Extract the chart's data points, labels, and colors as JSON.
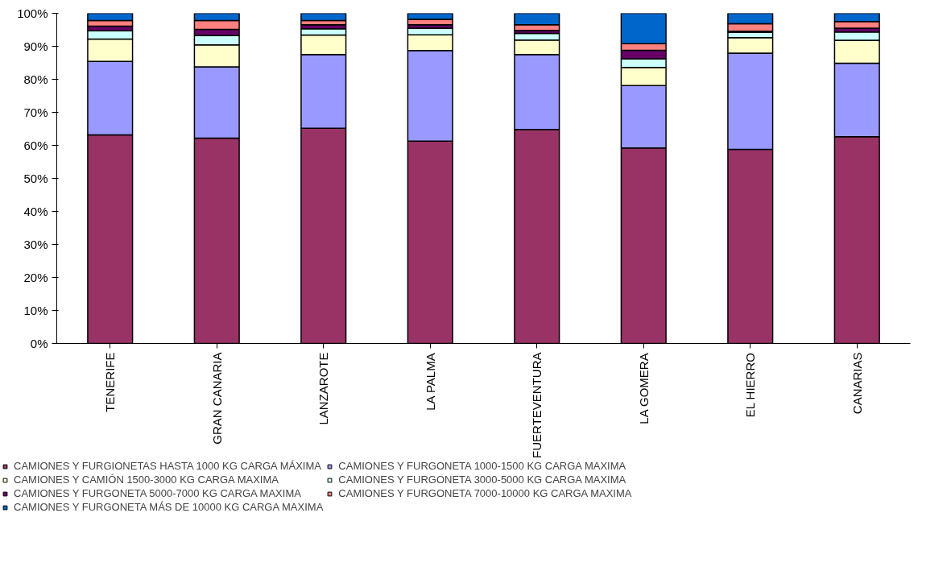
{
  "chart_data": {
    "type": "bar",
    "stacked": true,
    "categories": [
      "TENERIFE",
      "GRAN CANARIA",
      "LANZAROTE",
      "LA PALMA",
      "FUERTEVENTURA",
      "LA GOMERA",
      "EL HIERRO",
      "CANARIAS"
    ],
    "series": [
      {
        "name": "CAMIONES Y FURGIONETAS HASTA 1000 KG CARGA MÁXIMA",
        "color": "#993366",
        "values": [
          63.2,
          62.2,
          65.2,
          61.3,
          64.8,
          59.2,
          58.8,
          62.6
        ]
      },
      {
        "name": "CAMIONES Y FURGONETA 1000-1500 KG CARGA MAXIMA",
        "color": "#9999ff",
        "values": [
          22.2,
          21.6,
          22.3,
          27.4,
          22.7,
          18.9,
          29.1,
          22.3
        ]
      },
      {
        "name": "CAMIONES Y CAMIÓN 1500-3000 KG CARGA MAXIMA",
        "color": "#ffffcc",
        "values": [
          6.8,
          6.6,
          5.9,
          4.8,
          4.4,
          5.5,
          4.7,
          6.9
        ]
      },
      {
        "name": "CAMIONES Y FURGONETA 3000-5000 KG CARGA MAXIMA",
        "color": "#ccffff",
        "values": [
          2.5,
          2.9,
          1.9,
          2.0,
          2.0,
          2.6,
          1.6,
          2.5
        ]
      },
      {
        "name": "CAMIONES Y FURGONETA 5000-7000 KG CARGA MAXIMA",
        "color": "#660066",
        "values": [
          1.4,
          1.8,
          1.2,
          1.0,
          0.9,
          2.6,
          0.4,
          1.2
        ]
      },
      {
        "name": "CAMIONES Y FURGONETA 7000-10000 KG CARGA MAXIMA",
        "color": "#ff8080",
        "values": [
          1.7,
          2.7,
          1.3,
          1.7,
          1.7,
          2.0,
          2.2,
          2.0
        ]
      },
      {
        "name": "CAMIONES Y FURGONETA MÁS DE 10000 KG CARGA MAXIMA",
        "color": "#0066cc",
        "values": [
          2.2,
          2.2,
          2.2,
          1.8,
          3.5,
          9.2,
          3.2,
          2.5
        ]
      }
    ],
    "ylim": [
      0,
      100
    ],
    "yticks": [
      {
        "value": 0,
        "label": "0%"
      },
      {
        "value": 10,
        "label": "10%"
      },
      {
        "value": 20,
        "label": "20%"
      },
      {
        "value": 30,
        "label": "30%"
      },
      {
        "value": 40,
        "label": "40%"
      },
      {
        "value": 50,
        "label": "50%"
      },
      {
        "value": 60,
        "label": "60%"
      },
      {
        "value": 70,
        "label": "70%"
      },
      {
        "value": 80,
        "label": "80%"
      },
      {
        "value": 90,
        "label": "90%"
      },
      {
        "value": 100,
        "label": "100%"
      }
    ],
    "grid": false,
    "legend": "bottom"
  }
}
